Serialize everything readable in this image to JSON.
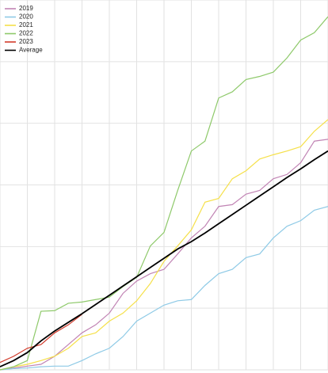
{
  "chart_data": {
    "type": "line",
    "x": [
      0,
      0.5,
      1,
      1.5,
      2,
      2.5,
      3,
      3.5,
      4,
      4.5,
      5,
      5.5,
      6,
      6.5,
      7,
      7.5,
      8,
      8.5,
      9,
      9.5,
      10,
      10.5,
      11,
      11.5,
      12
    ],
    "xlim": [
      0,
      12
    ],
    "xticks": [
      0,
      1,
      2,
      3,
      4,
      5,
      6,
      7,
      8,
      9,
      10,
      11,
      12
    ],
    "ylim": [
      0,
      6
    ],
    "yticks": [
      0,
      1,
      2,
      3,
      4,
      5,
      6
    ],
    "grid": true,
    "legend": "top-left",
    "series": [
      {
        "name": "2019",
        "color": "#c184b4",
        "values": [
          0,
          0.03,
          0.06,
          0.09,
          0.22,
          0.41,
          0.6,
          0.73,
          0.92,
          1.24,
          1.44,
          1.56,
          1.63,
          1.88,
          2.14,
          2.33,
          2.65,
          2.68,
          2.85,
          2.91,
          3.1,
          3.17,
          3.36,
          3.71,
          3.74
        ]
      },
      {
        "name": "2020",
        "color": "#8ecae6",
        "values": [
          0,
          0.02,
          0.03,
          0.05,
          0.06,
          0.06,
          0.15,
          0.26,
          0.35,
          0.54,
          0.79,
          0.92,
          1.05,
          1.12,
          1.14,
          1.37,
          1.56,
          1.63,
          1.82,
          1.88,
          2.14,
          2.33,
          2.42,
          2.59,
          2.65
        ]
      },
      {
        "name": "2021",
        "color": "#f5e04a",
        "values": [
          0,
          0.05,
          0.09,
          0.15,
          0.22,
          0.35,
          0.54,
          0.6,
          0.79,
          0.92,
          1.12,
          1.4,
          1.76,
          2.01,
          2.27,
          2.72,
          2.78,
          3.1,
          3.23,
          3.42,
          3.49,
          3.55,
          3.62,
          3.87,
          4.06
        ]
      },
      {
        "name": "2022",
        "color": "#8ec96a",
        "values": [
          0,
          0.05,
          0.15,
          0.95,
          0.96,
          1.08,
          1.1,
          1.14,
          1.18,
          1.35,
          1.5,
          2.01,
          2.23,
          2.91,
          3.55,
          3.71,
          4.41,
          4.51,
          4.71,
          4.76,
          4.83,
          5.06,
          5.35,
          5.47,
          5.73
        ]
      },
      {
        "name": "2023",
        "color": "#d23a2a",
        "values": [
          0.12,
          0.22,
          0.35,
          0.41,
          0.6,
          0.73,
          0.9,
          null,
          null,
          null,
          null,
          null,
          null,
          null,
          null,
          null,
          null,
          null,
          null,
          null,
          null,
          null,
          null,
          null,
          null
        ]
      },
      {
        "name": "Average",
        "color": "#000000",
        "values": [
          0.05,
          0.15,
          0.28,
          0.47,
          0.63,
          0.77,
          0.91,
          1.06,
          1.21,
          1.36,
          1.51,
          1.66,
          1.81,
          1.96,
          2.08,
          2.22,
          2.37,
          2.52,
          2.67,
          2.82,
          2.97,
          3.12,
          3.26,
          3.41,
          3.55
        ]
      }
    ]
  }
}
